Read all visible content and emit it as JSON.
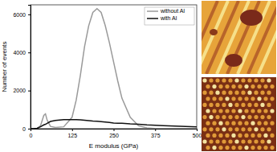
{
  "chart_data": {
    "type": "line",
    "x_label": "E modulus (GPa)",
    "y_label": "Number of events",
    "x": [
      0,
      10,
      20,
      30,
      40,
      45,
      50,
      60,
      75,
      100,
      125,
      137.5,
      150,
      162.5,
      175,
      187.5,
      200,
      212.5,
      225,
      237.5,
      250,
      262.5,
      275,
      300,
      325,
      350,
      375,
      400,
      450,
      500
    ],
    "series": [
      {
        "name": "without Al",
        "color": "#9a9a9a",
        "values": [
          0,
          0,
          20,
          150,
          700,
          780,
          450,
          120,
          60,
          100,
          600,
          1500,
          2800,
          4300,
          5400,
          6100,
          6300,
          6100,
          5400,
          4500,
          3500,
          2500,
          1600,
          600,
          150,
          40,
          10,
          0,
          0,
          0
        ]
      },
      {
        "name": "with Al",
        "color": "#111111",
        "values": [
          0,
          0,
          20,
          100,
          200,
          230,
          280,
          380,
          430,
          470,
          480,
          470,
          460,
          440,
          420,
          400,
          390,
          370,
          350,
          330,
          300,
          290,
          280,
          250,
          230,
          200,
          180,
          160,
          130,
          100
        ]
      }
    ],
    "xlim": [
      0,
      500
    ],
    "xticks": [
      0,
      125,
      250,
      375,
      500
    ],
    "ylim": [
      0,
      6500
    ],
    "yticks": [
      0,
      2000,
      4000,
      6000
    ],
    "legend": "top-right"
  }
}
